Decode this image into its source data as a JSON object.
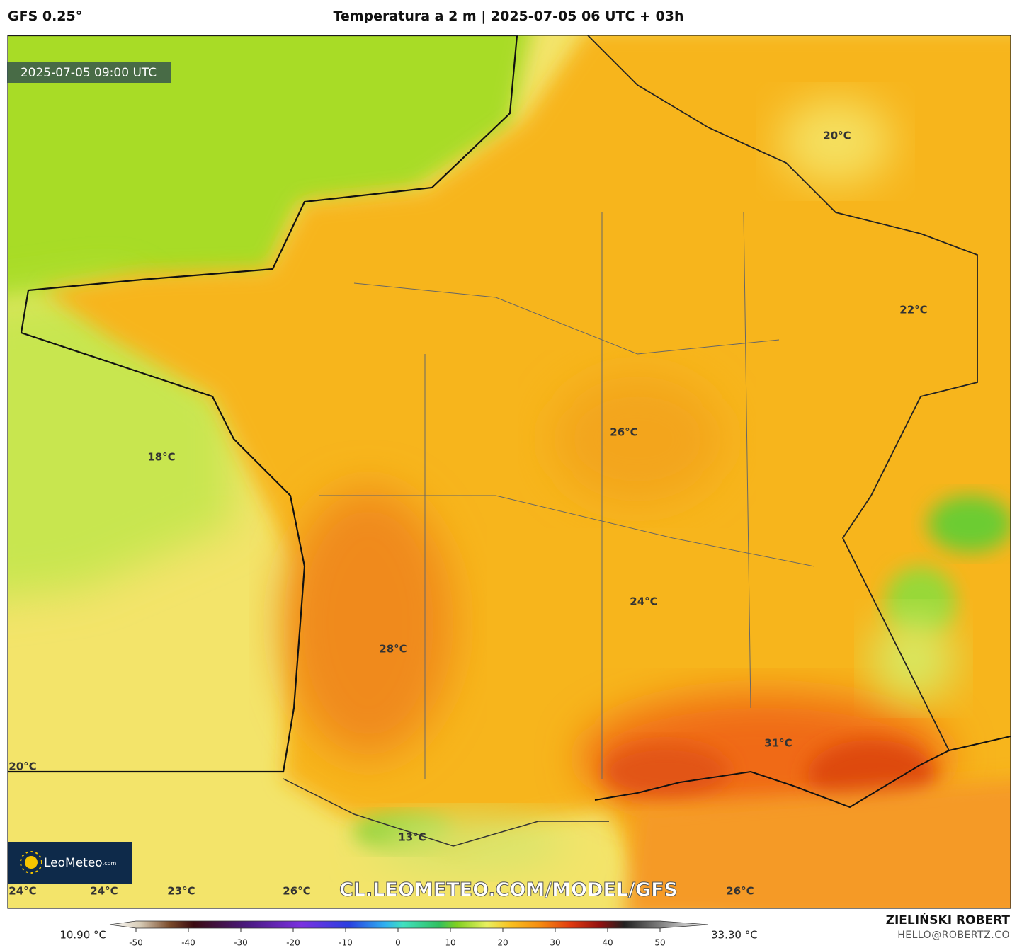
{
  "header": {
    "model": "GFS 0.25°",
    "title": "Temperatura a 2 m | 2025-07-05 06 UTC + 03h"
  },
  "map": {
    "valid_time": "2025-07-05 09:00 UTC",
    "labels": [
      "20°C",
      "22°C",
      "26°C",
      "18°C",
      "24°C",
      "28°C",
      "31°C",
      "13°C",
      "20°C",
      "24°C",
      "24°C",
      "23°C",
      "26°C",
      "26°C"
    ],
    "watermark": "CL.LEOMETEO.COM/MODEL/GFS",
    "logo": {
      "name": "LeoMeteo",
      "suffix": ".com"
    }
  },
  "colorbar": {
    "min_label": "10.90 °C",
    "max_label": "33.30 °C",
    "ticks": [
      -50,
      -40,
      -30,
      -20,
      -10,
      0,
      10,
      20,
      30,
      40,
      50
    ]
  },
  "credit": {
    "author": "ZIELIŃSKI ROBERT",
    "email": "HELLO@ROBERTZ.CO"
  }
}
